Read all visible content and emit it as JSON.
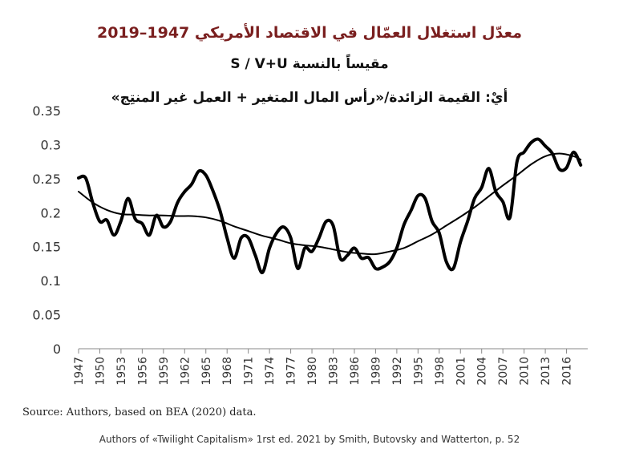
{
  "chart_data": {
    "type": "line",
    "title": "معدّل استغلال العمّال في الاقتصاد الأمريكي 1947–2019",
    "subtitle": "مقيساً بالنسبة S / V+U",
    "subtitle2": "أيْ: القيمة الزائدة/«رأس المال المتغير + العمل غير المنتِج»",
    "xlabel": "",
    "ylabel": "",
    "ylim": [
      0,
      0.35
    ],
    "xlim": [
      1947,
      2019
    ],
    "y_ticks": [
      "0",
      "0.05",
      "0.1",
      "0.15",
      "0.2",
      "0.25",
      "0.3",
      "0.35"
    ],
    "x_ticks": [
      "1947",
      "1950",
      "1953",
      "1956",
      "1959",
      "1962",
      "1965",
      "1968",
      "1971",
      "1974",
      "1977",
      "1980",
      "1983",
      "1986",
      "1989",
      "1992",
      "1995",
      "1998",
      "2001",
      "2004",
      "2007",
      "2010",
      "2013",
      "2016"
    ],
    "grid": false,
    "series": [
      {
        "values": [
          [
            1947,
            0.251
          ],
          [
            1948,
            0.251
          ],
          [
            1949,
            0.215
          ],
          [
            1950,
            0.187
          ],
          [
            1951,
            0.189
          ],
          [
            1952,
            0.167
          ],
          [
            1953,
            0.188
          ],
          [
            1954,
            0.221
          ],
          [
            1955,
            0.191
          ],
          [
            1956,
            0.184
          ],
          [
            1957,
            0.167
          ],
          [
            1958,
            0.196
          ],
          [
            1959,
            0.179
          ],
          [
            1960,
            0.187
          ],
          [
            1961,
            0.215
          ],
          [
            1962,
            0.231
          ],
          [
            1963,
            0.242
          ],
          [
            1964,
            0.261
          ],
          [
            1965,
            0.255
          ],
          [
            1966,
            0.232
          ],
          [
            1967,
            0.203
          ],
          [
            1968,
            0.163
          ],
          [
            1969,
            0.133
          ],
          [
            1970,
            0.163
          ],
          [
            1971,
            0.163
          ],
          [
            1972,
            0.137
          ],
          [
            1973,
            0.112
          ],
          [
            1974,
            0.148
          ],
          [
            1975,
            0.17
          ],
          [
            1976,
            0.179
          ],
          [
            1977,
            0.163
          ],
          [
            1978,
            0.118
          ],
          [
            1979,
            0.148
          ],
          [
            1980,
            0.143
          ],
          [
            1981,
            0.163
          ],
          [
            1982,
            0.187
          ],
          [
            1983,
            0.181
          ],
          [
            1984,
            0.133
          ],
          [
            1985,
            0.137
          ],
          [
            1986,
            0.148
          ],
          [
            1987,
            0.133
          ],
          [
            1988,
            0.134
          ],
          [
            1989,
            0.118
          ],
          [
            1990,
            0.12
          ],
          [
            1991,
            0.128
          ],
          [
            1992,
            0.148
          ],
          [
            1993,
            0.182
          ],
          [
            1994,
            0.203
          ],
          [
            1995,
            0.225
          ],
          [
            1996,
            0.221
          ],
          [
            1997,
            0.187
          ],
          [
            1998,
            0.17
          ],
          [
            1999,
            0.128
          ],
          [
            2000,
            0.118
          ],
          [
            2001,
            0.157
          ],
          [
            2002,
            0.187
          ],
          [
            2003,
            0.221
          ],
          [
            2004,
            0.237
          ],
          [
            2005,
            0.265
          ],
          [
            2006,
            0.231
          ],
          [
            2007,
            0.216
          ],
          [
            2008,
            0.193
          ],
          [
            2009,
            0.275
          ],
          [
            2010,
            0.289
          ],
          [
            2011,
            0.303
          ],
          [
            2012,
            0.308
          ],
          [
            2013,
            0.298
          ],
          [
            2014,
            0.287
          ],
          [
            2015,
            0.264
          ],
          [
            2016,
            0.266
          ],
          [
            2017,
            0.289
          ],
          [
            2018,
            0.27
          ]
        ]
      },
      {
        "values": [
          [
            1947,
            0.231
          ],
          [
            1949,
            0.215
          ],
          [
            1951,
            0.204
          ],
          [
            1953,
            0.198
          ],
          [
            1955,
            0.197
          ],
          [
            1957,
            0.196
          ],
          [
            1959,
            0.196
          ],
          [
            1961,
            0.195
          ],
          [
            1963,
            0.195
          ],
          [
            1965,
            0.193
          ],
          [
            1967,
            0.188
          ],
          [
            1969,
            0.18
          ],
          [
            1971,
            0.173
          ],
          [
            1973,
            0.166
          ],
          [
            1975,
            0.161
          ],
          [
            1977,
            0.155
          ],
          [
            1979,
            0.152
          ],
          [
            1981,
            0.15
          ],
          [
            1983,
            0.146
          ],
          [
            1985,
            0.142
          ],
          [
            1987,
            0.14
          ],
          [
            1989,
            0.139
          ],
          [
            1991,
            0.143
          ],
          [
            1993,
            0.148
          ],
          [
            1995,
            0.158
          ],
          [
            1997,
            0.168
          ],
          [
            1999,
            0.181
          ],
          [
            2001,
            0.194
          ],
          [
            2003,
            0.208
          ],
          [
            2005,
            0.224
          ],
          [
            2007,
            0.24
          ],
          [
            2009,
            0.255
          ],
          [
            2011,
            0.271
          ],
          [
            2013,
            0.283
          ],
          [
            2015,
            0.287
          ],
          [
            2017,
            0.283
          ],
          [
            2018,
            0.278
          ]
        ]
      }
    ],
    "source": "Source: Authors, based on BEA (2020) data.",
    "credit": "Authors of «Twilight Capitalism» 1rst ed. 2021 by Smith, Butovsky and Watterton, p. 52",
    "colors": {
      "title": "#7a1f1f",
      "line": "#000000",
      "axis": "#888888"
    }
  }
}
